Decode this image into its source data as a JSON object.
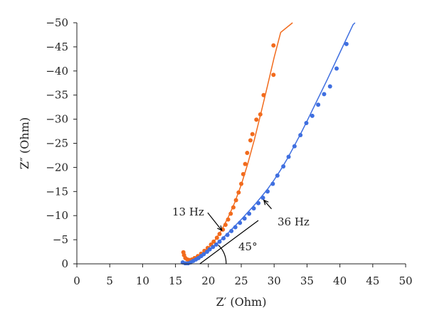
{
  "chart_data": {
    "type": "scatter",
    "xlabel": "Z′ (Ohm)",
    "ylabel": "Z″ (Ohm)",
    "xlim": [
      0,
      50
    ],
    "ylim": [
      0,
      -50
    ],
    "x_ticks": [
      "0",
      "5",
      "10",
      "15",
      "20",
      "25",
      "30",
      "35",
      "40",
      "45",
      "50"
    ],
    "y_ticks": [
      "0",
      "−5",
      "−10",
      "−15",
      "−20",
      "−25",
      "−30",
      "−35",
      "−40",
      "−45",
      "−50"
    ],
    "series": [
      {
        "color": "#f26b1d",
        "points": [
          [
            16.2,
            -2.4
          ],
          [
            16.3,
            -1.8
          ],
          [
            16.5,
            -1.2
          ],
          [
            16.8,
            -0.9
          ],
          [
            17.1,
            -0.8
          ],
          [
            17.5,
            -0.9
          ],
          [
            17.9,
            -1.2
          ],
          [
            18.4,
            -1.6
          ],
          [
            18.9,
            -2.1
          ],
          [
            19.4,
            -2.7
          ],
          [
            19.9,
            -3.3
          ],
          [
            20.4,
            -4.0
          ],
          [
            20.8,
            -4.6
          ],
          [
            21.3,
            -5.4
          ],
          [
            21.7,
            -6.2
          ],
          [
            22.2,
            -7.1
          ],
          [
            22.6,
            -8.1
          ],
          [
            23.0,
            -9.2
          ],
          [
            23.4,
            -10.4
          ],
          [
            23.8,
            -11.7
          ],
          [
            24.2,
            -13.2
          ],
          [
            24.6,
            -14.8
          ],
          [
            25.0,
            -16.6
          ],
          [
            25.3,
            -18.6
          ],
          [
            25.6,
            -20.7
          ],
          [
            25.9,
            -23.0
          ],
          [
            26.4,
            -25.6
          ],
          [
            26.7,
            -26.9
          ],
          [
            27.3,
            -29.9
          ],
          [
            27.9,
            -31.0
          ],
          [
            28.4,
            -35.0
          ],
          [
            29.9,
            -39.2
          ],
          [
            29.9,
            -45.3
          ]
        ],
        "fit": [
          [
            16.3,
            -1.6
          ],
          [
            17.0,
            -0.9
          ],
          [
            18.0,
            -1.1
          ],
          [
            19.0,
            -2.0
          ],
          [
            20.0,
            -3.3
          ],
          [
            21.0,
            -4.9
          ],
          [
            22.0,
            -7.0
          ],
          [
            23.0,
            -9.6
          ],
          [
            24.0,
            -12.7
          ],
          [
            25.0,
            -16.4
          ],
          [
            26.0,
            -20.8
          ],
          [
            27.0,
            -25.8
          ],
          [
            28.0,
            -31.3
          ],
          [
            29.0,
            -37.0
          ],
          [
            30.0,
            -42.8
          ],
          [
            31.0,
            -48.0
          ],
          [
            32.8,
            -50.0
          ]
        ]
      },
      {
        "color": "#3f6fe0",
        "points": [
          [
            16.1,
            -0.3
          ],
          [
            16.5,
            -0.1
          ],
          [
            16.9,
            -0.1
          ],
          [
            17.3,
            -0.3
          ],
          [
            17.7,
            -0.6
          ],
          [
            18.1,
            -0.9
          ],
          [
            18.5,
            -1.2
          ],
          [
            18.9,
            -1.6
          ],
          [
            19.3,
            -2.0
          ],
          [
            19.8,
            -2.5
          ],
          [
            20.2,
            -3.0
          ],
          [
            20.7,
            -3.5
          ],
          [
            21.2,
            -4.0
          ],
          [
            21.7,
            -4.6
          ],
          [
            22.3,
            -5.3
          ],
          [
            22.9,
            -6.0
          ],
          [
            23.5,
            -6.8
          ],
          [
            24.1,
            -7.6
          ],
          [
            24.8,
            -8.5
          ],
          [
            25.5,
            -9.4
          ],
          [
            26.2,
            -10.4
          ],
          [
            26.9,
            -11.5
          ],
          [
            27.6,
            -12.6
          ],
          [
            28.3,
            -13.7
          ],
          [
            29.0,
            -15.0
          ],
          [
            29.8,
            -16.6
          ],
          [
            30.5,
            -18.3
          ],
          [
            31.4,
            -20.2
          ],
          [
            32.2,
            -22.2
          ],
          [
            33.1,
            -24.4
          ],
          [
            34.0,
            -26.7
          ],
          [
            34.9,
            -29.2
          ],
          [
            35.8,
            -30.7
          ],
          [
            36.7,
            -33.0
          ],
          [
            37.6,
            -35.2
          ],
          [
            38.5,
            -36.8
          ],
          [
            39.5,
            -40.5
          ],
          [
            41.0,
            -45.6
          ]
        ],
        "fit": [
          [
            16.0,
            -0.6
          ],
          [
            17.0,
            -0.0
          ],
          [
            18.0,
            -0.7
          ],
          [
            19.0,
            -1.6
          ],
          [
            20.0,
            -2.6
          ],
          [
            21.0,
            -3.8
          ],
          [
            22.0,
            -5.1
          ],
          [
            23.0,
            -6.4
          ],
          [
            24.0,
            -7.8
          ],
          [
            25.0,
            -9.2
          ],
          [
            26.0,
            -10.7
          ],
          [
            27.0,
            -12.2
          ],
          [
            28.0,
            -13.8
          ],
          [
            29.0,
            -15.5
          ],
          [
            30.0,
            -17.4
          ],
          [
            31.0,
            -19.5
          ],
          [
            32.0,
            -21.8
          ],
          [
            33.0,
            -24.3
          ],
          [
            34.0,
            -26.9
          ],
          [
            35.0,
            -29.6
          ],
          [
            36.0,
            -32.4
          ],
          [
            37.0,
            -35.2
          ],
          [
            38.0,
            -38.0
          ],
          [
            39.0,
            -40.9
          ],
          [
            40.0,
            -43.8
          ],
          [
            41.0,
            -46.7
          ],
          [
            42.0,
            -49.6
          ],
          [
            42.3,
            -50.0
          ]
        ]
      }
    ],
    "annotations": [
      {
        "text": "13 Hz",
        "target": [
          21.5,
          -6.2
        ]
      },
      {
        "text": "36 Hz",
        "target": [
          28.0,
          -13.5
        ]
      },
      {
        "text": "45°"
      }
    ],
    "grid": false,
    "legend": "none"
  }
}
